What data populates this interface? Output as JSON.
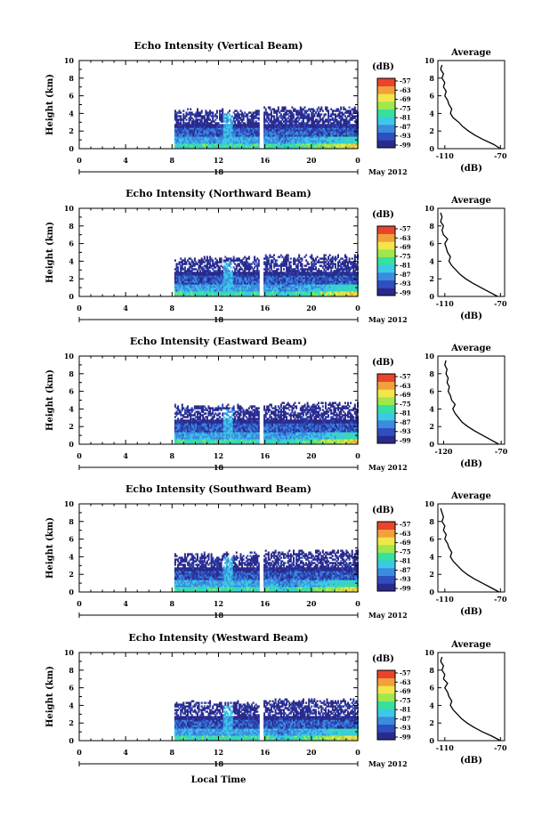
{
  "figure": {
    "shared_xlabel": "Local Time",
    "date_label": "May 2012",
    "day_label": "18",
    "colorbar_unit": "(dB)",
    "colorbar_ticks": [
      "-57",
      "-63",
      "-69",
      "-75",
      "-81",
      "-87",
      "-93",
      "-99"
    ],
    "colors": [
      "#2a2a8c",
      "#2f4fbf",
      "#3c8be0",
      "#3bc9e6",
      "#36e0a0",
      "#9ee84c",
      "#f2e64a",
      "#f2a03a",
      "#e8452c"
    ]
  },
  "chart_data": [
    {
      "type": "heatmap",
      "title": "Echo Intensity (Vertical Beam)",
      "ylabel": "Height (km)",
      "x_ticks": [
        "0",
        "4",
        "8",
        "12",
        "16",
        "20",
        "0"
      ],
      "y_ticks": [
        "0",
        "2",
        "4",
        "6",
        "8",
        "10"
      ],
      "xlim": [
        0,
        24
      ],
      "ylim": [
        0,
        10
      ],
      "data_hours": [
        8.2,
        24
      ],
      "gap_hours": [
        15.4,
        15.8
      ],
      "profile": {
        "title": "Average",
        "xlabel": "(dB)",
        "x_ticks": [
          "-110",
          "-70"
        ],
        "xlim": [
          -115,
          -67
        ],
        "heights": [
          0,
          0.5,
          1,
          1.5,
          2,
          2.5,
          3,
          3.5,
          4,
          4.5,
          5,
          5.5,
          6,
          6.5,
          7,
          7.5,
          8,
          8.5,
          9,
          9.5
        ],
        "values": [
          -70,
          -75,
          -82,
          -88,
          -93,
          -97,
          -100,
          -104,
          -106,
          -105,
          -107,
          -108,
          -110,
          -109,
          -111,
          -110,
          -112,
          -111,
          -113,
          -112
        ]
      }
    },
    {
      "type": "heatmap",
      "title": "Echo Intensity (Northward Beam)",
      "ylabel": "Height (km)",
      "x_ticks": [
        "0",
        "4",
        "8",
        "12",
        "16",
        "20",
        "0"
      ],
      "y_ticks": [
        "0",
        "2",
        "4",
        "6",
        "8",
        "10"
      ],
      "xlim": [
        0,
        24
      ],
      "ylim": [
        0,
        10
      ],
      "data_hours": [
        8.2,
        24
      ],
      "gap_hours": [
        15.4,
        15.8
      ],
      "profile": {
        "title": "Average",
        "xlabel": "(dB)",
        "x_ticks": [
          "-110",
          "-70"
        ],
        "xlim": [
          -115,
          -67
        ],
        "heights": [
          0,
          0.5,
          1,
          1.5,
          2,
          2.5,
          3,
          3.5,
          4,
          4.5,
          5,
          5.5,
          6,
          6.5,
          7,
          7.5,
          8,
          8.5,
          9,
          9.5
        ],
        "values": [
          -72,
          -78,
          -84,
          -90,
          -95,
          -99,
          -102,
          -105,
          -107,
          -106,
          -108,
          -109,
          -110,
          -108,
          -111,
          -112,
          -111,
          -113,
          -112,
          -113
        ]
      }
    },
    {
      "type": "heatmap",
      "title": "Echo Intensity (Eastward Beam)",
      "ylabel": "Height (km)",
      "x_ticks": [
        "0",
        "4",
        "8",
        "12",
        "16",
        "20",
        "0"
      ],
      "y_ticks": [
        "0",
        "2",
        "4",
        "6",
        "8",
        "10"
      ],
      "xlim": [
        0,
        24
      ],
      "ylim": [
        0,
        10
      ],
      "data_hours": [
        8.2,
        24
      ],
      "gap_hours": [
        15.4,
        15.8
      ],
      "profile": {
        "title": "Average",
        "xlabel": "(dB)",
        "x_ticks": [
          "-120",
          "-70"
        ],
        "xlim": [
          -125,
          -67
        ],
        "heights": [
          0,
          0.5,
          1,
          1.5,
          2,
          2.5,
          3,
          3.5,
          4,
          4.5,
          5,
          5.5,
          6,
          6.5,
          7,
          7.5,
          8,
          8.5,
          9,
          9.5
        ],
        "values": [
          -72,
          -79,
          -86,
          -93,
          -99,
          -104,
          -107,
          -110,
          -112,
          -110,
          -113,
          -114,
          -116,
          -115,
          -117,
          -116,
          -118,
          -117,
          -119,
          -118
        ]
      }
    },
    {
      "type": "heatmap",
      "title": "Echo Intensity (Southward Beam)",
      "ylabel": "Height (km)",
      "x_ticks": [
        "0",
        "4",
        "8",
        "12",
        "16",
        "20",
        "0"
      ],
      "y_ticks": [
        "0",
        "2",
        "4",
        "6",
        "8",
        "10"
      ],
      "xlim": [
        0,
        24
      ],
      "ylim": [
        0,
        10
      ],
      "data_hours": [
        8.2,
        24
      ],
      "gap_hours": [
        15.4,
        15.8
      ],
      "profile": {
        "title": "Average",
        "xlabel": "(dB)",
        "x_ticks": [
          "-110",
          "-70"
        ],
        "xlim": [
          -115,
          -67
        ],
        "heights": [
          0,
          0.5,
          1,
          1.5,
          2,
          2.5,
          3,
          3.5,
          4,
          4.5,
          5,
          5.5,
          6,
          6.5,
          7,
          7.5,
          8,
          8.5,
          9,
          9.5
        ],
        "values": [
          -71,
          -77,
          -83,
          -89,
          -94,
          -98,
          -101,
          -104,
          -106,
          -105,
          -107,
          -108,
          -110,
          -109,
          -111,
          -110,
          -112,
          -111,
          -112,
          -113
        ]
      }
    },
    {
      "type": "heatmap",
      "title": "Echo Intensity (Westward Beam)",
      "ylabel": "Height (km)",
      "x_ticks": [
        "0",
        "4",
        "8",
        "12",
        "16",
        "20",
        "0"
      ],
      "y_ticks": [
        "0",
        "2",
        "4",
        "6",
        "8",
        "10"
      ],
      "xlim": [
        0,
        24
      ],
      "ylim": [
        0,
        10
      ],
      "data_hours": [
        8.2,
        24
      ],
      "gap_hours": [
        15.4,
        15.8
      ],
      "profile": {
        "title": "Average",
        "xlabel": "(dB)",
        "x_ticks": [
          "-110",
          "-70"
        ],
        "xlim": [
          -115,
          -67
        ],
        "heights": [
          0,
          0.5,
          1,
          1.5,
          2,
          2.5,
          3,
          3.5,
          4,
          4.5,
          5,
          5.5,
          6,
          6.5,
          7,
          7.5,
          8,
          8.5,
          9,
          9.5
        ],
        "values": [
          -70,
          -76,
          -83,
          -89,
          -94,
          -98,
          -101,
          -104,
          -106,
          -105,
          -107,
          -108,
          -110,
          -108,
          -111,
          -110,
          -112,
          -111,
          -113,
          -112
        ]
      }
    }
  ]
}
